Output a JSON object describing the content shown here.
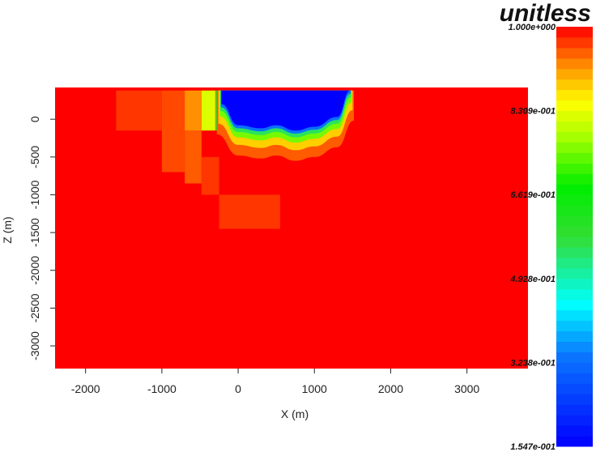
{
  "chart_data": {
    "type": "heatmap",
    "title": "",
    "xlabel": "X (m)",
    "ylabel": "Z (m)",
    "xlim": [
      -2400,
      3800
    ],
    "ylim": [
      -3300,
      420
    ],
    "x_ticks": [
      {
        "value": -2000,
        "label": "-2000"
      },
      {
        "value": -1000,
        "label": "-1000"
      },
      {
        "value": 0,
        "label": "0"
      },
      {
        "value": 1000,
        "label": "1000"
      },
      {
        "value": 2000,
        "label": "2000"
      },
      {
        "value": 3000,
        "label": "3000"
      }
    ],
    "y_ticks": [
      {
        "value": 0,
        "label": "0"
      },
      {
        "value": -500,
        "label": "-500"
      },
      {
        "value": -1000,
        "label": "-1000"
      },
      {
        "value": -1500,
        "label": "-1500"
      },
      {
        "value": -2000,
        "label": "-2000"
      },
      {
        "value": -2500,
        "label": "-2500"
      },
      {
        "value": -3000,
        "label": "-3000"
      }
    ],
    "colorbar": {
      "title": "unitless",
      "min": 0.1547,
      "max": 1.0,
      "colormap": "rainbow",
      "labels": [
        {
          "value": 1.0,
          "label": "1.000e+000"
        },
        {
          "value": 0.8309,
          "label": "8.309e-001"
        },
        {
          "value": 0.6619,
          "label": "6.619e-001"
        },
        {
          "value": 0.4928,
          "label": "4.928e-001"
        },
        {
          "value": 0.3238,
          "label": "3.238e-001"
        },
        {
          "value": 0.1547,
          "label": "1.547e-001"
        }
      ]
    },
    "background_value": 1.0,
    "low_value_region": {
      "value": 0.1547,
      "x_extent": [
        -220,
        1470
      ],
      "top_z": 380,
      "bottom_profile": [
        [
          -220,
          200
        ],
        [
          0,
          -80
        ],
        [
          300,
          -120
        ],
        [
          500,
          -80
        ],
        [
          750,
          -150
        ],
        [
          1000,
          -100
        ],
        [
          1300,
          30
        ],
        [
          1470,
          380
        ]
      ]
    },
    "transition_bands": [
      {
        "value": 0.33,
        "offset": 40
      },
      {
        "value": 0.55,
        "offset": 90
      },
      {
        "value": 0.75,
        "offset": 160
      },
      {
        "value": 0.88,
        "offset": 260
      },
      {
        "value": 0.95,
        "offset": 400
      }
    ],
    "left_strips": [
      {
        "x": [
          -300,
          -220
        ],
        "value": 0.6
      },
      {
        "x": [
          -480,
          -300
        ],
        "value": 0.82
      },
      {
        "x": [
          -700,
          -480
        ],
        "value": 0.92
      }
    ],
    "blocks": [
      {
        "x": [
          -1600,
          -1000
        ],
        "z": [
          380,
          -150
        ],
        "value": 0.97
      },
      {
        "x": [
          -1000,
          -700
        ],
        "z": [
          380,
          -700
        ],
        "value": 0.96
      },
      {
        "x": [
          -700,
          -480
        ],
        "z": [
          -150,
          -850
        ],
        "value": 0.95
      },
      {
        "x": [
          -480,
          -250
        ],
        "z": [
          -500,
          -1000
        ],
        "value": 0.97
      },
      {
        "x": [
          -250,
          550
        ],
        "z": [
          -1000,
          -1450
        ],
        "value": 0.97
      }
    ]
  }
}
